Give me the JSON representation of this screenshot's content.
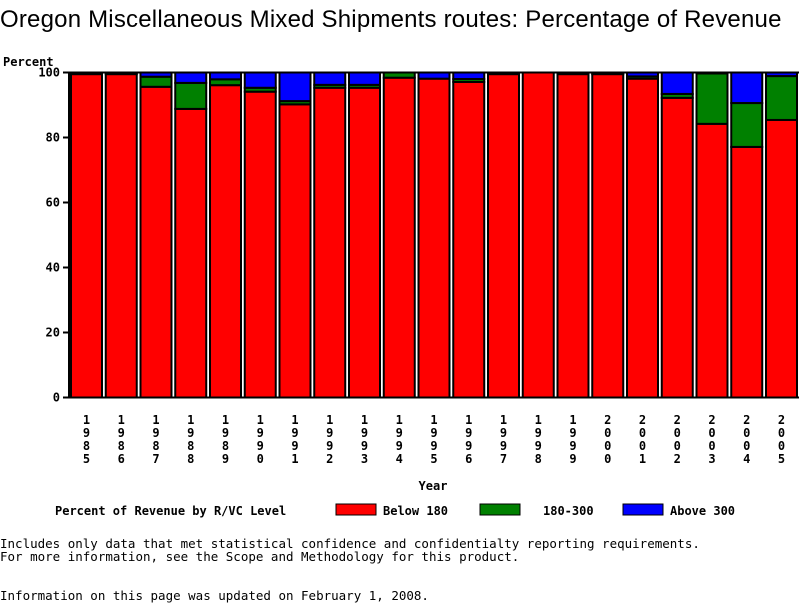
{
  "chart_data": {
    "type": "bar",
    "stacked": true,
    "title": "Oregon Miscellaneous Mixed Shipments routes: Percentage of Revenue",
    "xlabel": "Year",
    "ylabel": "Percent",
    "ylim": [
      0,
      100
    ],
    "yticks": [
      0,
      20,
      40,
      60,
      80,
      100
    ],
    "categories": [
      "1985",
      "1986",
      "1987",
      "1988",
      "1989",
      "1990",
      "1991",
      "1992",
      "1993",
      "1994",
      "1995",
      "1996",
      "1997",
      "1998",
      "1999",
      "2000",
      "2001",
      "2002",
      "2003",
      "2004",
      "2005"
    ],
    "legend_title": "Percent of Revenue by R/VC Level",
    "legend_position": "bottom",
    "series": [
      {
        "name": "Below 180",
        "color": "#ff0000",
        "values": [
          99.5,
          99.5,
          95.6,
          88.8,
          96.1,
          94.1,
          90.2,
          95.3,
          95.3,
          98.4,
          98.1,
          97.1,
          99.5,
          100,
          99.5,
          99.5,
          98.1,
          92.2,
          84.2,
          77.1,
          85.4
        ]
      },
      {
        "name": "180-300",
        "color": "#008000",
        "values": [
          0.5,
          0.5,
          3.1,
          8.0,
          1.8,
          1.2,
          1.0,
          0.9,
          0.9,
          1.6,
          0,
          0.9,
          0.5,
          0,
          0.5,
          0.5,
          0.7,
          1.2,
          15.5,
          13.5,
          13.5
        ]
      },
      {
        "name": "Above 300",
        "color": "#0000ff",
        "values": [
          0,
          0,
          1.3,
          3.2,
          2.1,
          4.7,
          8.8,
          3.8,
          3.8,
          0,
          1.9,
          2.0,
          0,
          0,
          0,
          0,
          1.2,
          6.6,
          0.3,
          9.4,
          1.1
        ]
      }
    ]
  },
  "notes": [
    "Includes only data that met statistical confidence and confidentialty reporting requirements.",
    "For more information, see the Scope and Methodology for this product.",
    "Information on this page was updated on February 1, 2008."
  ]
}
